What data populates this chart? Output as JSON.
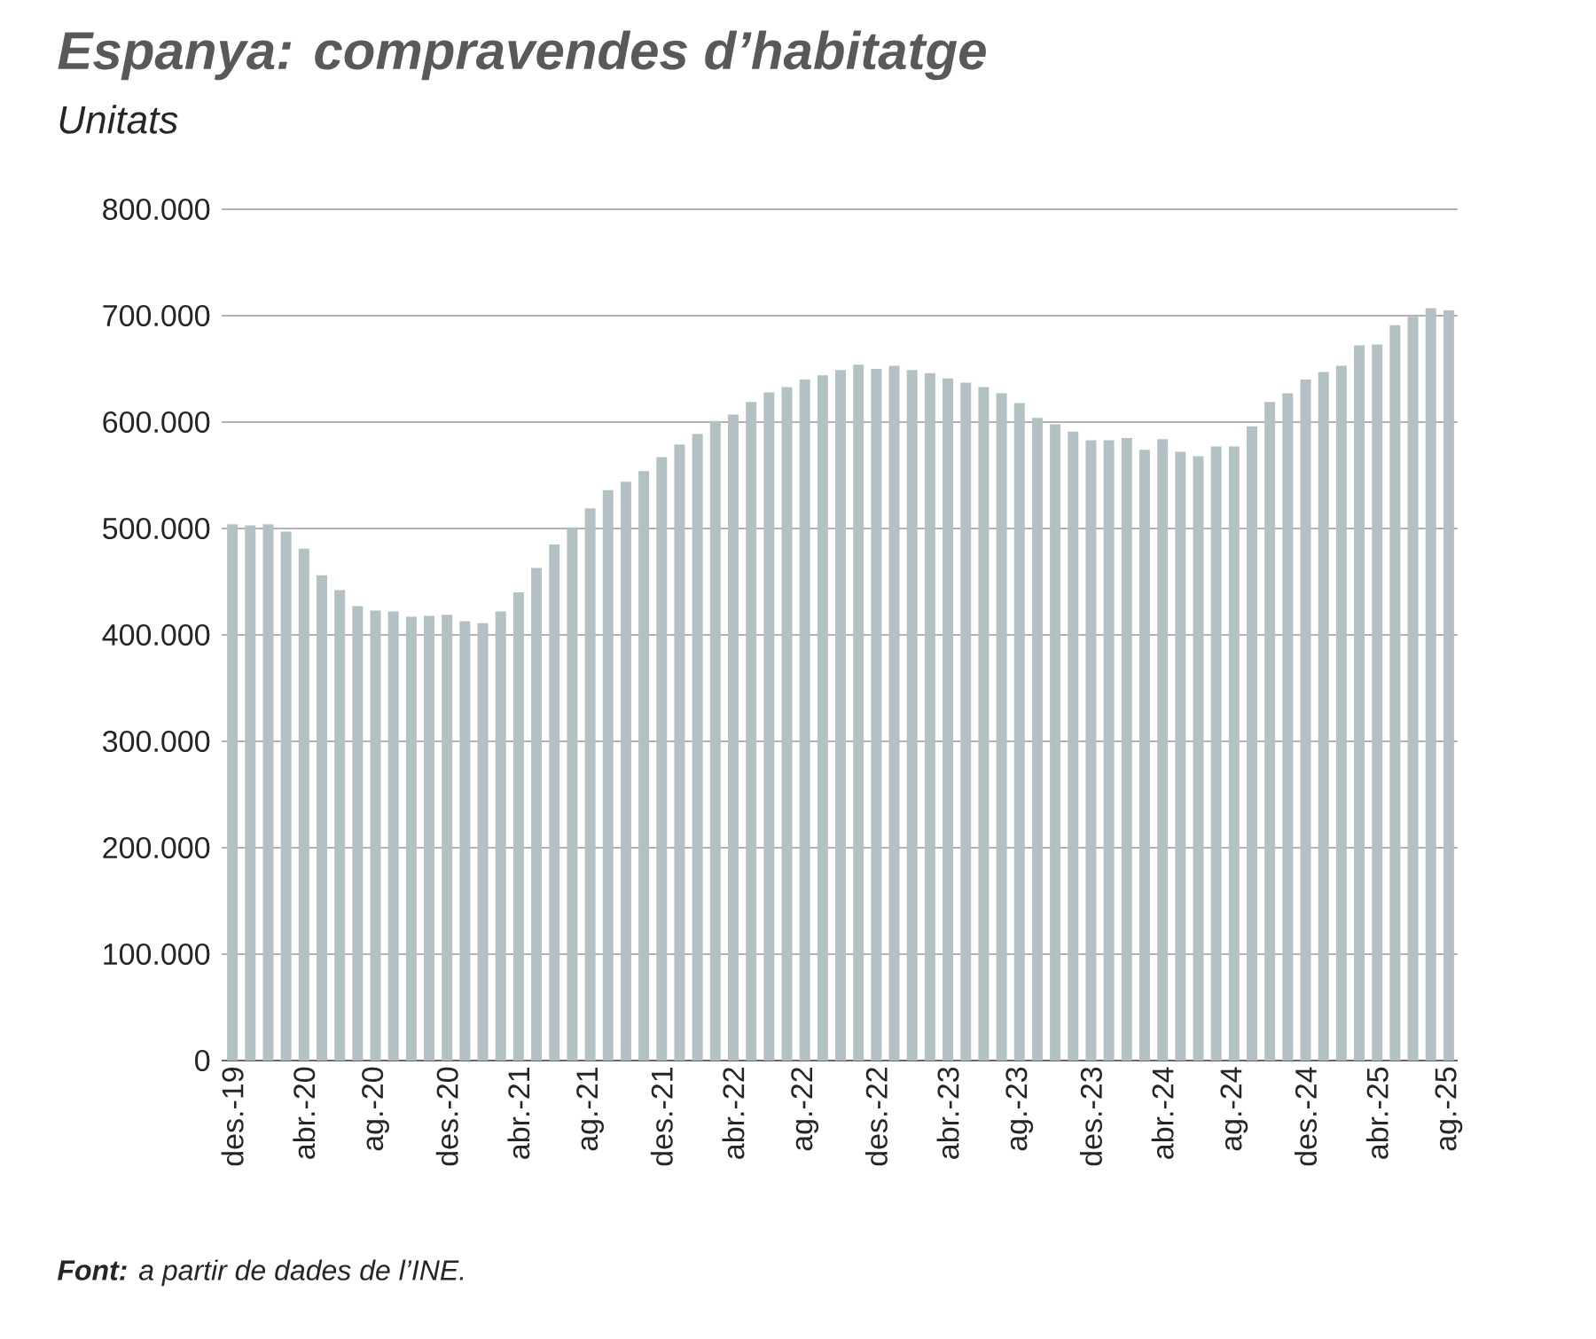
{
  "chart_data": {
    "type": "bar",
    "title": "Espanya: compravendes d’habitatge",
    "subtitle": "Unitats",
    "categories": [
      "des.-19",
      null,
      null,
      null,
      "abr.-20",
      null,
      null,
      null,
      "ag.-20",
      null,
      null,
      null,
      "des.-20",
      null,
      null,
      null,
      "abr.-21",
      null,
      null,
      null,
      "ag.-21",
      null,
      null,
      null,
      "des.-21",
      null,
      null,
      null,
      "abr.-22",
      null,
      null,
      null,
      "ag.-22",
      null,
      null,
      null,
      "des.-22",
      null,
      null,
      null,
      "abr.-23",
      null,
      null,
      null,
      "ag.-23",
      null,
      null,
      null,
      "des.-23",
      null,
      null,
      null,
      "abr.-24",
      null,
      null,
      null,
      "ag.-24",
      null,
      null,
      null,
      "des.-24",
      null,
      null,
      null,
      "abr.-25",
      null,
      null,
      null,
      "ag.-25"
    ],
    "values": [
      504000,
      503000,
      504000,
      497000,
      481000,
      456000,
      442000,
      427000,
      423000,
      422000,
      417000,
      418000,
      419000,
      413000,
      411000,
      422000,
      440000,
      463000,
      485000,
      501000,
      519000,
      536000,
      544000,
      554000,
      567000,
      579000,
      589000,
      601000,
      607000,
      619000,
      628000,
      633000,
      640000,
      644000,
      649000,
      654000,
      650000,
      653000,
      649000,
      646000,
      641000,
      637000,
      633000,
      627000,
      618000,
      604000,
      598000,
      591000,
      583000,
      583000,
      585000,
      574000,
      584000,
      572000,
      568000,
      577000,
      577000,
      596000,
      619000,
      627000,
      640000,
      647000,
      653000,
      672000,
      673000,
      691000,
      699000,
      707000,
      705000
    ],
    "color": "#b4c1c4",
    "ylim": [
      0,
      800000
    ],
    "yticks": [
      {
        "value": 0,
        "label": "0"
      },
      {
        "value": 100000,
        "label": "100.000"
      },
      {
        "value": 200000,
        "label": "200.000"
      },
      {
        "value": 300000,
        "label": "300.000"
      },
      {
        "value": 400000,
        "label": "400.000"
      },
      {
        "value": 500000,
        "label": "500.000"
      },
      {
        "value": 600000,
        "label": "600.000"
      },
      {
        "value": 700000,
        "label": "700.000"
      },
      {
        "value": 800000,
        "label": "800.000"
      }
    ],
    "grid": "y",
    "annotations": [
      "**Font:** a partir de dades de l’INE."
    ]
  }
}
